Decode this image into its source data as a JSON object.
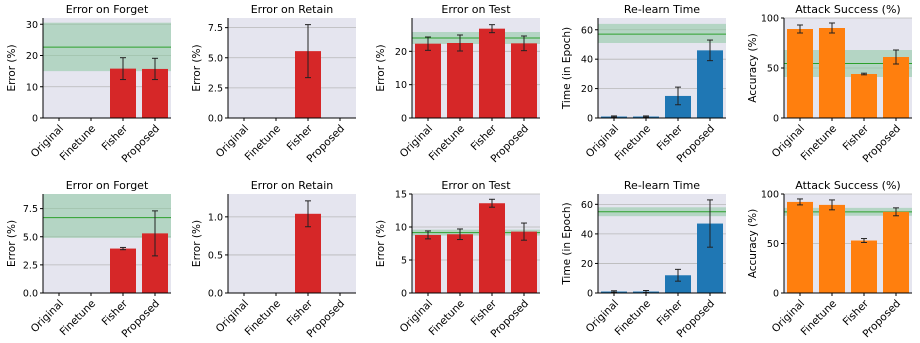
{
  "style": {
    "background": "#e5e5ef",
    "grid": "#b8b8b8",
    "band_fill": "#8cc8a0",
    "band_line": "#2ca02c",
    "red": "#d62728",
    "blue": "#1f77b4",
    "orange": "#ff7f0e"
  },
  "chart_data": [
    {
      "type": "bar",
      "title": "Error on Forget",
      "ylabel": "Error (%)",
      "categories": [
        "Original",
        "Finetune",
        "Fisher",
        "Proposed"
      ],
      "values": [
        0,
        0,
        15.8,
        15.7
      ],
      "errors": [
        0,
        0,
        3.5,
        3.4
      ],
      "color": "red",
      "ylim": [
        0,
        32
      ],
      "yticks": [
        "0",
        "10",
        "20",
        "30"
      ],
      "ytick_values": [
        0,
        10,
        20,
        30
      ],
      "band": [
        15,
        30.5
      ],
      "band_line": 22.7
    },
    {
      "type": "bar",
      "title": "Error on Retain",
      "ylabel": "Error (%)",
      "categories": [
        "Original",
        "Finetune",
        "Fisher",
        "Proposed"
      ],
      "values": [
        0,
        0,
        5.55,
        0
      ],
      "errors": [
        0,
        0,
        2.2,
        0
      ],
      "color": "red",
      "ylim": [
        0,
        8.3
      ],
      "yticks": [
        "0.0",
        "2.5",
        "5.0",
        "7.5"
      ],
      "ytick_values": [
        0,
        2.5,
        5,
        7.5
      ]
    },
    {
      "type": "bar",
      "title": "Error on Test",
      "ylabel": "Error (%)",
      "categories": [
        "Original",
        "Finetune",
        "Fisher",
        "Proposed"
      ],
      "values": [
        22.3,
        22.5,
        26.8,
        22.4
      ],
      "errors": [
        2.0,
        2.4,
        1.2,
        2.2
      ],
      "color": "red",
      "ylim": [
        0,
        30
      ],
      "yticks": [
        "0",
        "10",
        "20"
      ],
      "ytick_values": [
        0,
        10,
        20
      ],
      "band": [
        22.2,
        25.8
      ],
      "band_line": 24.0
    },
    {
      "type": "bar",
      "title": "Re-learn Time",
      "ylabel": "Time (in Epoch)",
      "categories": [
        "Original",
        "Finetune",
        "Fisher",
        "Proposed"
      ],
      "values": [
        1,
        1,
        15,
        46
      ],
      "errors": [
        0.4,
        0.4,
        6,
        7
      ],
      "color": "blue",
      "ylim": [
        0,
        68
      ],
      "yticks": [
        "0",
        "20",
        "40",
        "60"
      ],
      "ytick_values": [
        0,
        20,
        40,
        60
      ],
      "band": [
        51,
        64
      ],
      "band_line": 57
    },
    {
      "type": "bar",
      "title": "Attack Success (%)",
      "ylabel": "Accuracy (%)",
      "categories": [
        "Original",
        "Finetune",
        "Fisher",
        "Proposed"
      ],
      "values": [
        89,
        90,
        44,
        61
      ],
      "errors": [
        4,
        5,
        0.8,
        7
      ],
      "color": "orange",
      "ylim": [
        0,
        100
      ],
      "yticks": [
        "0",
        "50",
        "100"
      ],
      "ytick_values": [
        0,
        50,
        100
      ],
      "band": [
        41,
        68
      ],
      "band_line": 54.5
    },
    {
      "type": "bar",
      "title": "Error on Forget",
      "ylabel": "Error (%)",
      "categories": [
        "Original",
        "Finetune",
        "Fisher",
        "Proposed"
      ],
      "values": [
        0,
        0,
        3.95,
        5.3
      ],
      "errors": [
        0,
        0,
        0.1,
        2.0
      ],
      "color": "red",
      "ylim": [
        0,
        8.8
      ],
      "yticks": [
        "0.0",
        "2.5",
        "5.0",
        "7.5"
      ],
      "ytick_values": [
        0,
        2.5,
        5,
        7.5
      ],
      "band": [
        4.9,
        8.8
      ],
      "band_line": 6.7
    },
    {
      "type": "bar",
      "title": "Error on Retain",
      "ylabel": "Error (%)",
      "categories": [
        "Original",
        "Finetune",
        "Fisher",
        "Proposed"
      ],
      "values": [
        0,
        0,
        1.04,
        0
      ],
      "errors": [
        0,
        0,
        0.17,
        0
      ],
      "color": "red",
      "ylim": [
        0,
        1.3
      ],
      "yticks": [
        "0.0",
        "0.5",
        "1.0"
      ],
      "ytick_values": [
        0,
        0.5,
        1.0
      ]
    },
    {
      "type": "bar",
      "title": "Error on Test",
      "ylabel": "Error (%)",
      "categories": [
        "Original",
        "Finetune",
        "Fisher",
        "Proposed"
      ],
      "values": [
        8.8,
        8.9,
        13.6,
        9.3
      ],
      "errors": [
        0.6,
        0.8,
        0.6,
        1.3
      ],
      "color": "red",
      "ylim": [
        0,
        15
      ],
      "yticks": [
        "0",
        "5",
        "10",
        "15"
      ],
      "ytick_values": [
        0,
        5,
        10,
        15
      ],
      "band": [
        8.7,
        9.6
      ],
      "band_line": 9.15
    },
    {
      "type": "bar",
      "title": "Re-learn Time",
      "ylabel": "Time (in Epoch)",
      "categories": [
        "Original",
        "Finetune",
        "Fisher",
        "Proposed"
      ],
      "values": [
        1,
        1,
        12,
        47
      ],
      "errors": [
        0.5,
        0.7,
        4,
        16
      ],
      "color": "blue",
      "ylim": [
        0,
        67
      ],
      "yticks": [
        "0",
        "20",
        "40",
        "60"
      ],
      "ytick_values": [
        0,
        20,
        40,
        60
      ],
      "band": [
        52,
        58
      ],
      "band_line": 55
    },
    {
      "type": "bar",
      "title": "Attack Success (%)",
      "ylabel": "Accuracy (%)",
      "categories": [
        "Original",
        "Finetune",
        "Fisher",
        "Proposed"
      ],
      "values": [
        92,
        89,
        53,
        82
      ],
      "errors": [
        3,
        5,
        2,
        4
      ],
      "color": "orange",
      "ylim": [
        0,
        100
      ],
      "yticks": [
        "0",
        "50",
        "100"
      ],
      "ytick_values": [
        0,
        50,
        100
      ],
      "band": [
        78,
        86
      ],
      "band_line": 82
    }
  ]
}
